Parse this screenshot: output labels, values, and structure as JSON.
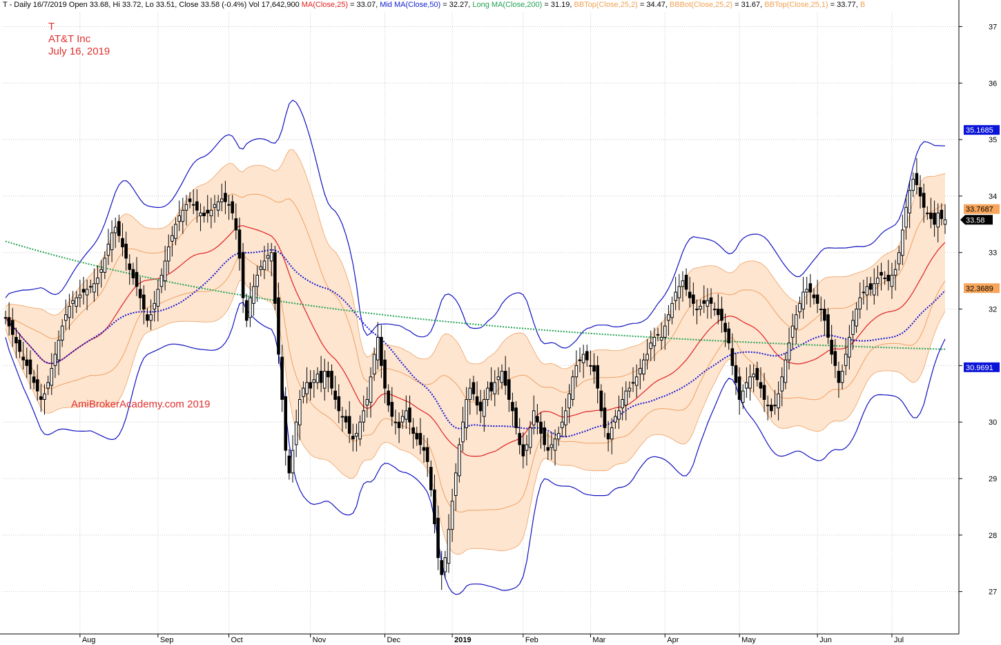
{
  "header": {
    "items": [
      {
        "text": "T - Daily 16/7/2019 Open 33.68, Hi 33.72, Lo 33.51, Close 33.58 (-0.4%) Vol 17,642,900 ",
        "color": "#000000"
      },
      {
        "text": "MA(Close,25)",
        "color": "#e02020"
      },
      {
        "text": " = 33.07, ",
        "color": "#000000"
      },
      {
        "text": "Mid MA(Close,50)",
        "color": "#1020d0"
      },
      {
        "text": " = 32.27, ",
        "color": "#000000"
      },
      {
        "text": "Long MA(Close,200)",
        "color": "#20a050"
      },
      {
        "text": " = 31.19, ",
        "color": "#000000"
      },
      {
        "text": "BBTop(Close,25,2)",
        "color": "#f0a050"
      },
      {
        "text": " = 34.47, ",
        "color": "#000000"
      },
      {
        "text": "BBBot(Close,25,2)",
        "color": "#f0a050"
      },
      {
        "text": " = 31.67, ",
        "color": "#000000"
      },
      {
        "text": "BBTop(Close,25,1)",
        "color": "#f0a050"
      },
      {
        "text": " = 33.77, ",
        "color": "#000000"
      },
      {
        "text": "B",
        "color": "#f0a050"
      }
    ]
  },
  "overlay": {
    "ticker": "T",
    "company": "AT&T Inc",
    "date": "July 16, 2019",
    "watermark": "AmiBrokerAcademy.com  2019"
  },
  "colors": {
    "ma25": "#e02020",
    "ma50": "#1010d0",
    "ma200": "#20a050",
    "bb1": "#f0a060",
    "bb2": "#1010c0",
    "fill": "#fde5d0",
    "candle": "#000000",
    "grid": "#c8c8c8"
  },
  "chart_data": {
    "type": "candlestick",
    "ylim": [
      26.25,
      37.25
    ],
    "yticks": [
      27,
      28,
      29,
      30,
      31,
      32,
      33,
      34,
      35,
      36,
      37
    ],
    "xticks": [
      {
        "label": "Aug",
        "index": 21
      },
      {
        "label": "Sep",
        "index": 43
      },
      {
        "label": "Oct",
        "index": 63
      },
      {
        "label": "Nov",
        "index": 86
      },
      {
        "label": "Dec",
        "index": 107
      },
      {
        "label": "2019",
        "index": 126,
        "bold": true
      },
      {
        "label": "Feb",
        "index": 146
      },
      {
        "label": "Mar",
        "index": 165
      },
      {
        "label": "Apr",
        "index": 186
      },
      {
        "label": "May",
        "index": 207
      },
      {
        "label": "Jun",
        "index": 229
      },
      {
        "label": "Jul",
        "index": 250
      }
    ],
    "price_labels": [
      {
        "value": "35.1685",
        "price": 35.17,
        "style": "blue"
      },
      {
        "value": "33.7687",
        "price": 33.77,
        "style": "orange"
      },
      {
        "value": "33.58",
        "price": 33.58,
        "style": "black"
      },
      {
        "value": "32.3689",
        "price": 32.37,
        "style": "orange"
      },
      {
        "value": "30.9691",
        "price": 30.97,
        "style": "blue"
      }
    ],
    "closes": [
      31.85,
      31.7,
      31.55,
      31.4,
      31.25,
      31.1,
      31.0,
      30.85,
      30.7,
      30.55,
      30.4,
      30.5,
      30.7,
      30.95,
      31.2,
      31.45,
      31.7,
      31.9,
      32.05,
      32.15,
      32.2,
      32.25,
      32.3,
      32.35,
      32.4,
      32.45,
      32.55,
      32.7,
      32.9,
      33.15,
      33.35,
      33.45,
      33.3,
      33.1,
      32.9,
      32.7,
      32.55,
      32.4,
      32.2,
      32.0,
      31.8,
      31.9,
      32.1,
      32.35,
      32.6,
      32.85,
      33.1,
      33.3,
      33.5,
      33.65,
      33.75,
      33.85,
      33.9,
      33.85,
      33.75,
      33.7,
      33.65,
      33.7,
      33.75,
      33.85,
      33.9,
      33.95,
      33.9,
      33.85,
      33.7,
      33.4,
      32.9,
      32.2,
      31.8,
      32.2,
      32.4,
      32.6,
      32.75,
      32.85,
      32.95,
      33.0,
      32.1,
      31.2,
      30.4,
      29.5,
      29.1,
      29.5,
      30.0,
      30.4,
      30.6,
      30.7,
      30.6,
      30.75,
      30.85,
      30.7,
      30.9,
      30.8,
      30.6,
      30.4,
      30.2,
      30.1,
      30.0,
      29.8,
      29.7,
      29.8,
      30.0,
      30.2,
      30.4,
      30.8,
      31.2,
      31.5,
      31.0,
      30.6,
      30.3,
      30.1,
      30.0,
      29.9,
      30.1,
      30.2,
      30.0,
      29.8,
      29.7,
      29.6,
      29.5,
      29.3,
      28.8,
      28.2,
      27.6,
      27.3,
      27.6,
      28.1,
      28.6,
      29.1,
      29.6,
      30.0,
      30.4,
      30.6,
      30.5,
      30.3,
      30.2,
      30.4,
      30.6,
      30.55,
      30.7,
      30.8,
      30.9,
      30.65,
      30.4,
      30.2,
      29.9,
      29.6,
      29.4,
      29.6,
      29.9,
      30.2,
      30.0,
      29.8,
      29.6,
      29.5,
      29.6,
      29.7,
      29.8,
      30.0,
      30.2,
      30.5,
      30.8,
      31.0,
      31.1,
      31.2,
      31.1,
      31.0,
      30.9,
      30.6,
      30.2,
      29.9,
      29.7,
      29.9,
      30.1,
      30.2,
      30.4,
      30.55,
      30.6,
      30.7,
      30.8,
      30.95,
      31.1,
      31.2,
      31.4,
      31.5,
      31.55,
      31.5,
      31.7,
      31.9,
      32.1,
      32.3,
      32.4,
      32.5,
      32.35,
      32.2,
      32.1,
      32.0,
      32.05,
      32.1,
      32.15,
      32.1,
      32.0,
      31.9,
      31.8,
      31.6,
      31.4,
      31.0,
      30.7,
      30.4,
      30.55,
      30.7,
      30.8,
      30.85,
      30.75,
      30.6,
      30.4,
      30.3,
      30.2,
      30.3,
      30.5,
      30.8,
      31.1,
      31.4,
      31.7,
      31.9,
      32.1,
      32.3,
      32.35,
      32.3,
      32.2,
      32.1,
      32.0,
      31.8,
      31.5,
      31.2,
      31.0,
      30.7,
      30.9,
      31.2,
      31.5,
      31.8,
      32.0,
      32.2,
      32.3,
      32.4,
      32.35,
      32.45,
      32.55,
      32.6,
      32.55,
      32.5,
      32.6,
      32.7,
      33.0,
      33.4,
      33.8,
      34.1,
      34.3,
      34.2,
      34.0,
      33.8,
      33.7,
      33.6,
      33.5,
      33.7,
      33.6,
      33.58
    ]
  }
}
